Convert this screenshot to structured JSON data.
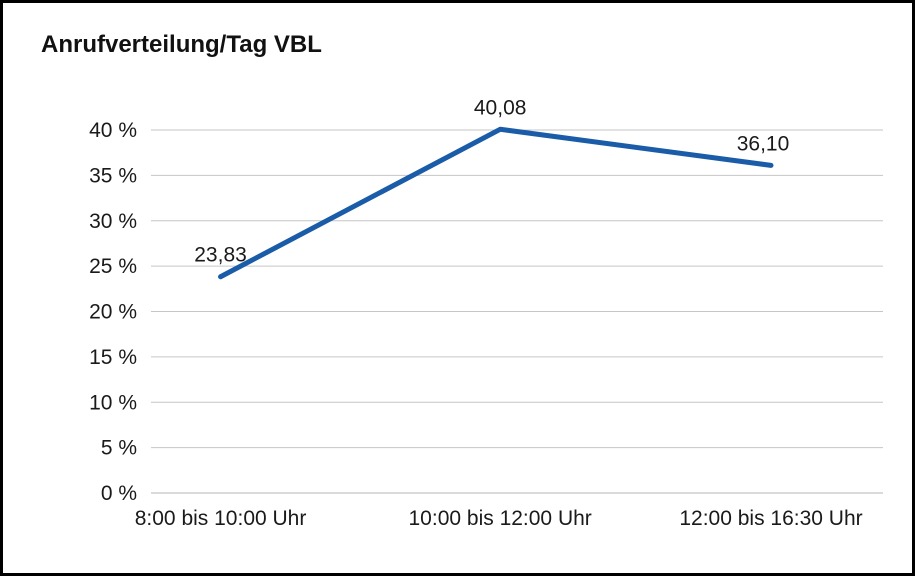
{
  "title": "Anrufverteilung/Tag VBL",
  "chart_data": {
    "type": "line",
    "title": "Anrufverteilung/Tag VBL",
    "categories": [
      "8:00 bis 10:00 Uhr",
      "10:00 bis 12:00 Uhr",
      "12:00 bis 16:30 Uhr"
    ],
    "values": [
      23.83,
      40.08,
      36.1
    ],
    "data_labels": [
      "23,83",
      "40,08",
      "36,10"
    ],
    "xlabel": "",
    "ylabel": "",
    "ylim": [
      0,
      40
    ],
    "ytick_values": [
      0,
      5,
      10,
      15,
      20,
      25,
      30,
      35,
      40
    ],
    "ytick_labels": [
      "0 %",
      "5 %",
      "10 %",
      "15 %",
      "20 %",
      "25 %",
      "30 %",
      "35 %",
      "40 %"
    ],
    "grid": true,
    "legend": "none",
    "line_color": "#1A5CA8"
  }
}
